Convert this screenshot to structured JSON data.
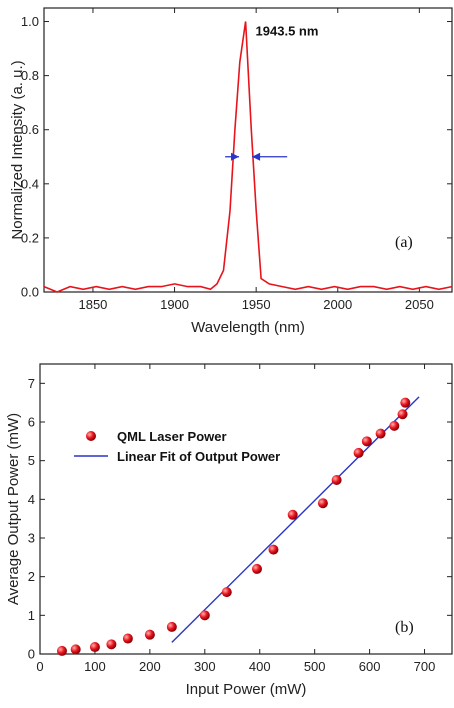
{
  "colors": {
    "series": "#e8141c",
    "fit": "#2a35c8",
    "arrow": "#2a35c8",
    "axis": "#222222"
  },
  "chart_data": [
    {
      "type": "line",
      "panel_label": "(a)",
      "xlabel": "Wavelength (nm)",
      "ylabel": "Normalized Intensity (a. u.)",
      "xlim": [
        1820,
        2070
      ],
      "ylim": [
        0,
        1.05
      ],
      "xticks": [
        1850,
        1900,
        1950,
        2000,
        2050
      ],
      "yticks": [
        0.0,
        0.2,
        0.4,
        0.6,
        0.8,
        1.0
      ],
      "annotation": "1943.5 nm",
      "peak": {
        "x": 1943.5,
        "y": 1.0
      },
      "fwhm_markers": {
        "y": 0.5,
        "left": 1931,
        "right": 1969
      },
      "series": [
        {
          "x": [
            1820,
            1828,
            1836,
            1844,
            1852,
            1860,
            1868,
            1876,
            1884,
            1892,
            1900,
            1908,
            1916,
            1922,
            1926,
            1930,
            1934,
            1937,
            1940,
            1943.5,
            1947,
            1950,
            1953,
            1958,
            1966,
            1974,
            1982,
            1990,
            1998,
            2006,
            2014,
            2022,
            2030,
            2038,
            2046,
            2054,
            2062,
            2070
          ],
          "y": [
            0.02,
            0.0,
            0.02,
            0.01,
            0.02,
            0.01,
            0.02,
            0.01,
            0.02,
            0.02,
            0.03,
            0.02,
            0.02,
            0.01,
            0.03,
            0.08,
            0.3,
            0.6,
            0.85,
            1.0,
            0.6,
            0.3,
            0.05,
            0.03,
            0.02,
            0.01,
            0.02,
            0.01,
            0.02,
            0.01,
            0.02,
            0.02,
            0.01,
            0.02,
            0.01,
            0.02,
            0.01,
            0.02
          ]
        }
      ]
    },
    {
      "type": "scatter",
      "panel_label": "(b)",
      "xlabel": "Input Power (mW)",
      "ylabel": "Average Output Power (mW)",
      "xlim": [
        0,
        750
      ],
      "ylim": [
        0,
        7.5
      ],
      "xticks": [
        0,
        100,
        200,
        300,
        400,
        500,
        600,
        700
      ],
      "yticks": [
        0,
        1,
        2,
        3,
        4,
        5,
        6,
        7
      ],
      "legend": [
        "QML Laser Power",
        "Linear Fit of Output Power"
      ],
      "series": [
        {
          "name": "QML Laser Power",
          "x": [
            40,
            65,
            100,
            130,
            160,
            200,
            240,
            300,
            340,
            395,
            425,
            460,
            515,
            540,
            580,
            595,
            620,
            645,
            660,
            665
          ],
          "y": [
            0.08,
            0.12,
            0.18,
            0.25,
            0.4,
            0.5,
            0.7,
            1.0,
            1.6,
            2.2,
            2.7,
            3.6,
            3.9,
            4.5,
            5.2,
            5.5,
            5.7,
            5.9,
            6.2,
            6.5
          ]
        },
        {
          "name": "Linear Fit of Output Power",
          "x": [
            240,
            690
          ],
          "y": [
            0.3,
            6.65
          ]
        }
      ]
    }
  ]
}
